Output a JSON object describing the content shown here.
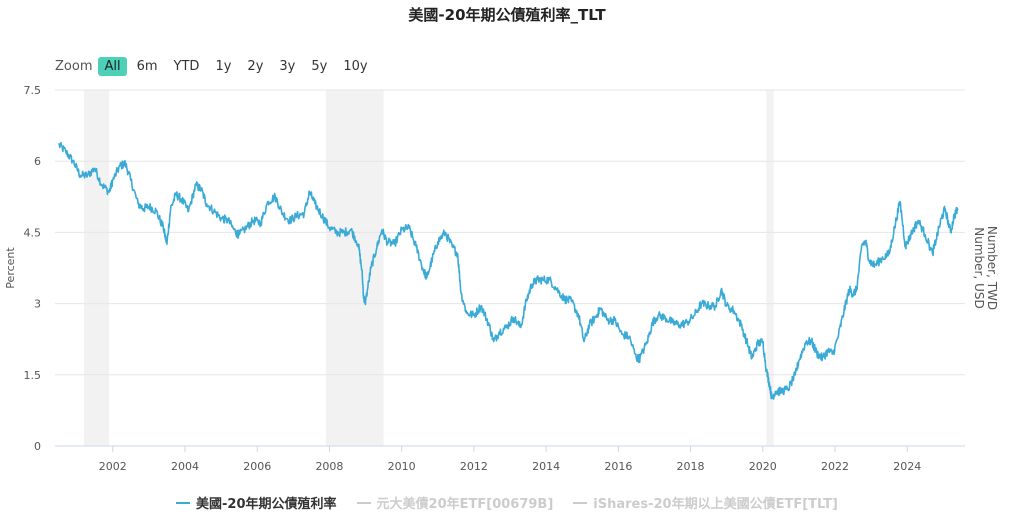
{
  "title": "美國-20年期公債殖利率_TLT",
  "zoom": {
    "label": "Zoom",
    "buttons": [
      "All",
      "6m",
      "YTD",
      "1y",
      "2y",
      "3y",
      "5y",
      "10y"
    ],
    "active": "All"
  },
  "colors": {
    "line": "#3aaad6",
    "band": "#f2f2f2",
    "grid": "#e6e6e6",
    "inactive": "#cccccc",
    "active_btn": "#4dd0b8"
  },
  "chart_data": {
    "type": "line",
    "title": "美國-20年期公債殖利率_TLT",
    "ylabel": "Percent",
    "ylabel_right": "Number, USD\nNumber, TWD",
    "ylim": [
      0,
      7.5
    ],
    "yticks": [
      "0",
      "1.5",
      "3",
      "4.5",
      "6",
      "7.5"
    ],
    "xlim": [
      2000.4,
      2025.6
    ],
    "xticks": [
      "2002",
      "2004",
      "2006",
      "2008",
      "2010",
      "2012",
      "2014",
      "2016",
      "2018",
      "2020",
      "2022",
      "2024"
    ],
    "recessions": [
      [
        2001.2,
        2001.9
      ],
      [
        2007.9,
        2009.5
      ],
      [
        2020.1,
        2020.3
      ]
    ],
    "series": [
      {
        "name": "美國-20年期公債殖利率",
        "visible": true,
        "points": [
          [
            2000.5,
            6.35
          ],
          [
            2000.7,
            6.2
          ],
          [
            2000.9,
            6.0
          ],
          [
            2001.1,
            5.7
          ],
          [
            2001.3,
            5.7
          ],
          [
            2001.5,
            5.85
          ],
          [
            2001.7,
            5.5
          ],
          [
            2001.9,
            5.35
          ],
          [
            2002.0,
            5.6
          ],
          [
            2002.2,
            5.9
          ],
          [
            2002.35,
            5.95
          ],
          [
            2002.5,
            5.6
          ],
          [
            2002.7,
            5.1
          ],
          [
            2002.85,
            5.0
          ],
          [
            2003.0,
            5.05
          ],
          [
            2003.2,
            4.95
          ],
          [
            2003.4,
            4.6
          ],
          [
            2003.5,
            4.25
          ],
          [
            2003.6,
            5.0
          ],
          [
            2003.75,
            5.3
          ],
          [
            2003.9,
            5.2
          ],
          [
            2004.1,
            4.95
          ],
          [
            2004.3,
            5.5
          ],
          [
            2004.45,
            5.4
          ],
          [
            2004.6,
            5.1
          ],
          [
            2004.8,
            4.95
          ],
          [
            2005.0,
            4.8
          ],
          [
            2005.2,
            4.75
          ],
          [
            2005.4,
            4.5
          ],
          [
            2005.5,
            4.45
          ],
          [
            2005.7,
            4.6
          ],
          [
            2005.9,
            4.75
          ],
          [
            2006.1,
            4.7
          ],
          [
            2006.3,
            5.15
          ],
          [
            2006.5,
            5.25
          ],
          [
            2006.7,
            4.9
          ],
          [
            2006.9,
            4.75
          ],
          [
            2007.1,
            4.85
          ],
          [
            2007.3,
            4.9
          ],
          [
            2007.45,
            5.35
          ],
          [
            2007.6,
            5.1
          ],
          [
            2007.8,
            4.85
          ],
          [
            2008.0,
            4.6
          ],
          [
            2008.2,
            4.5
          ],
          [
            2008.4,
            4.5
          ],
          [
            2008.6,
            4.55
          ],
          [
            2008.8,
            4.25
          ],
          [
            2008.9,
            3.7
          ],
          [
            2008.95,
            3.1
          ],
          [
            2009.0,
            3.05
          ],
          [
            2009.15,
            3.75
          ],
          [
            2009.3,
            4.15
          ],
          [
            2009.45,
            4.55
          ],
          [
            2009.6,
            4.3
          ],
          [
            2009.8,
            4.25
          ],
          [
            2010.0,
            4.55
          ],
          [
            2010.2,
            4.6
          ],
          [
            2010.4,
            4.2
          ],
          [
            2010.6,
            3.7
          ],
          [
            2010.7,
            3.55
          ],
          [
            2010.85,
            3.95
          ],
          [
            2011.0,
            4.3
          ],
          [
            2011.2,
            4.5
          ],
          [
            2011.4,
            4.2
          ],
          [
            2011.55,
            4.05
          ],
          [
            2011.65,
            3.2
          ],
          [
            2011.8,
            2.8
          ],
          [
            2012.0,
            2.75
          ],
          [
            2012.2,
            2.95
          ],
          [
            2012.4,
            2.6
          ],
          [
            2012.55,
            2.2
          ],
          [
            2012.7,
            2.4
          ],
          [
            2012.9,
            2.5
          ],
          [
            2013.1,
            2.7
          ],
          [
            2013.3,
            2.5
          ],
          [
            2013.45,
            3.05
          ],
          [
            2013.6,
            3.4
          ],
          [
            2013.75,
            3.5
          ],
          [
            2013.9,
            3.5
          ],
          [
            2014.1,
            3.5
          ],
          [
            2014.3,
            3.3
          ],
          [
            2014.5,
            3.1
          ],
          [
            2014.7,
            3.05
          ],
          [
            2014.9,
            2.75
          ],
          [
            2015.05,
            2.2
          ],
          [
            2015.2,
            2.55
          ],
          [
            2015.4,
            2.75
          ],
          [
            2015.5,
            2.9
          ],
          [
            2015.7,
            2.65
          ],
          [
            2015.9,
            2.65
          ],
          [
            2016.1,
            2.35
          ],
          [
            2016.3,
            2.3
          ],
          [
            2016.5,
            1.85
          ],
          [
            2016.6,
            1.85
          ],
          [
            2016.8,
            2.2
          ],
          [
            2016.95,
            2.6
          ],
          [
            2017.1,
            2.75
          ],
          [
            2017.3,
            2.7
          ],
          [
            2017.5,
            2.6
          ],
          [
            2017.7,
            2.55
          ],
          [
            2017.9,
            2.6
          ],
          [
            2018.1,
            2.75
          ],
          [
            2018.3,
            3.0
          ],
          [
            2018.5,
            2.95
          ],
          [
            2018.7,
            2.95
          ],
          [
            2018.85,
            3.3
          ],
          [
            2019.0,
            2.95
          ],
          [
            2019.2,
            2.85
          ],
          [
            2019.4,
            2.55
          ],
          [
            2019.6,
            2.1
          ],
          [
            2019.7,
            1.85
          ],
          [
            2019.85,
            2.15
          ],
          [
            2020.0,
            2.2
          ],
          [
            2020.1,
            1.6
          ],
          [
            2020.2,
            1.25
          ],
          [
            2020.25,
            1.0
          ],
          [
            2020.35,
            1.15
          ],
          [
            2020.5,
            1.15
          ],
          [
            2020.7,
            1.2
          ],
          [
            2020.9,
            1.5
          ],
          [
            2021.0,
            1.8
          ],
          [
            2021.2,
            2.2
          ],
          [
            2021.35,
            2.2
          ],
          [
            2021.5,
            1.95
          ],
          [
            2021.65,
            1.85
          ],
          [
            2021.8,
            2.0
          ],
          [
            2021.95,
            1.95
          ],
          [
            2022.1,
            2.35
          ],
          [
            2022.25,
            2.85
          ],
          [
            2022.4,
            3.3
          ],
          [
            2022.5,
            3.2
          ],
          [
            2022.6,
            3.3
          ],
          [
            2022.75,
            4.25
          ],
          [
            2022.85,
            4.3
          ],
          [
            2022.95,
            3.9
          ],
          [
            2023.1,
            3.8
          ],
          [
            2023.3,
            3.95
          ],
          [
            2023.5,
            4.05
          ],
          [
            2023.65,
            4.6
          ],
          [
            2023.8,
            5.15
          ],
          [
            2023.95,
            4.2
          ],
          [
            2024.1,
            4.45
          ],
          [
            2024.3,
            4.75
          ],
          [
            2024.5,
            4.45
          ],
          [
            2024.7,
            4.05
          ],
          [
            2024.8,
            4.35
          ],
          [
            2024.95,
            4.8
          ],
          [
            2025.05,
            5.0
          ],
          [
            2025.2,
            4.5
          ],
          [
            2025.3,
            4.85
          ],
          [
            2025.4,
            5.0
          ]
        ]
      },
      {
        "name": "元大美債20年ETF[00679B]",
        "visible": false
      },
      {
        "name": "iShares-20年期以上美國公債ETF[TLT]",
        "visible": false
      }
    ]
  }
}
